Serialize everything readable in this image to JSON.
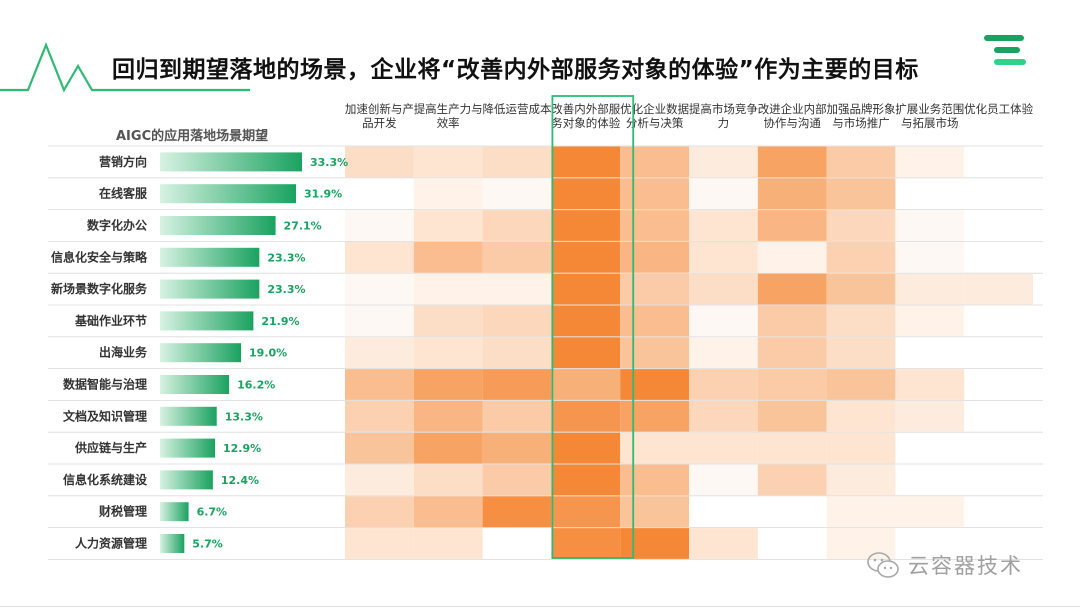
{
  "slide_title": "回归到期望落地的场景，企业将“改善内外部服务对象的体验”作为主要的目标",
  "panel_label": "AIGC的应用落地场景期望",
  "watermark_text": "云容器技术",
  "colors": {
    "green_dark": "#1aa260",
    "green_light": "#d7f2e2",
    "accent_green": "#2dbb73",
    "heat_base": "#f47b20"
  },
  "chart_data": [
    {
      "type": "bar",
      "title": "AIGC的应用落地场景期望",
      "categories": [
        "营销方向",
        "在线客服",
        "数字化办公",
        "信息化安全与策略",
        "新场景数字化服务",
        "基础作业环节",
        "出海业务",
        "数据智能与治理",
        "文档及知识管理",
        "供应链与生产",
        "信息化系统建设",
        "财税管理",
        "人力资源管理"
      ],
      "values": [
        33.3,
        31.9,
        27.1,
        23.3,
        23.3,
        21.9,
        19.0,
        16.2,
        13.3,
        12.9,
        12.4,
        6.7,
        5.7
      ],
      "value_labels": [
        "33.3%",
        "31.9%",
        "27.1%",
        "23.3%",
        "23.3%",
        "21.9%",
        "19.0%",
        "16.2%",
        "13.3%",
        "12.9%",
        "12.4%",
        "6.7%",
        "5.7%"
      ],
      "unit": "%"
    },
    {
      "type": "heatmap",
      "x_categories": [
        "加速创新与产品开发",
        "提高生产力与效率",
        "降低运营成本",
        "改善内外部服务对象的体验",
        "优化企业数据分析与决策",
        "提高市场竞争力",
        "改进企业内部协作与沟通",
        "加强品牌形象与市场推广",
        "扩展业务范围与拓展市场",
        "优化员工体验"
      ],
      "y_categories": [
        "营销方向",
        "在线客服",
        "数字化办公",
        "信息化安全与策略",
        "新场景数字化服务",
        "基础作业环节",
        "出海业务",
        "数据智能与治理",
        "文档及知识管理",
        "供应链与生产",
        "信息化系统建设",
        "财税管理",
        "人力资源管理"
      ],
      "values": [
        [
          0.25,
          0.2,
          0.25,
          0.9,
          0.5,
          0.15,
          0.7,
          0.4,
          0.1,
          0.0
        ],
        [
          0.0,
          0.1,
          0.05,
          0.9,
          0.5,
          0.05,
          0.6,
          0.45,
          0.0,
          0.0
        ],
        [
          0.05,
          0.2,
          0.3,
          0.9,
          0.5,
          0.2,
          0.55,
          0.3,
          0.05,
          0.0
        ],
        [
          0.2,
          0.5,
          0.4,
          0.9,
          0.55,
          0.2,
          0.1,
          0.35,
          0.05,
          0.0
        ],
        [
          0.05,
          0.1,
          0.1,
          0.9,
          0.4,
          0.25,
          0.7,
          0.45,
          0.15,
          0.15
        ],
        [
          0.05,
          0.25,
          0.3,
          0.9,
          0.5,
          0.05,
          0.4,
          0.25,
          0.1,
          0.0
        ],
        [
          0.15,
          0.2,
          0.25,
          0.9,
          0.45,
          0.1,
          0.4,
          0.25,
          0.0,
          0.0
        ],
        [
          0.5,
          0.7,
          0.75,
          0.6,
          0.9,
          0.35,
          0.4,
          0.45,
          0.2,
          0.0
        ],
        [
          0.35,
          0.55,
          0.4,
          0.8,
          0.7,
          0.3,
          0.45,
          0.2,
          0.15,
          0.0
        ],
        [
          0.45,
          0.7,
          0.6,
          0.9,
          0.2,
          0.2,
          0.2,
          0.2,
          0.0,
          0.0
        ],
        [
          0.15,
          0.25,
          0.4,
          0.9,
          0.5,
          0.05,
          0.35,
          0.15,
          0.0,
          0.0
        ],
        [
          0.35,
          0.5,
          0.85,
          0.8,
          0.45,
          0.0,
          0.0,
          0.1,
          0.1,
          0.0
        ],
        [
          0.2,
          0.2,
          0.0,
          0.85,
          0.9,
          0.2,
          0.0,
          0.1,
          0.0,
          0.0
        ]
      ],
      "highlight_column": "改善内外部服务对象的体验",
      "color_scale": "white to orange"
    }
  ]
}
